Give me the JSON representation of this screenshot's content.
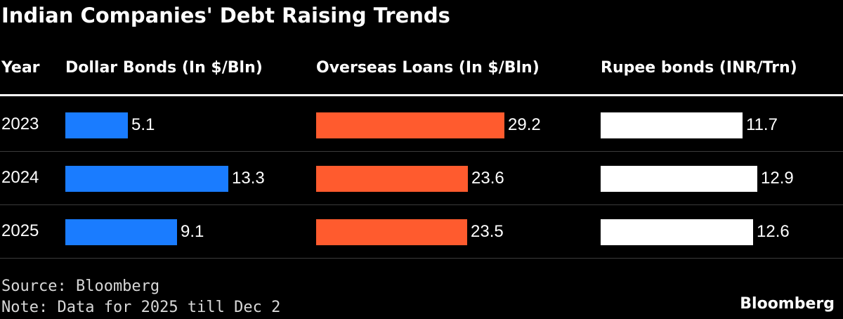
{
  "chart_data": {
    "type": "table",
    "title": "Indian Companies' Debt Raising Trends",
    "row_header": "Year",
    "categories": [
      "2023",
      "2024",
      "2025"
    ],
    "series": [
      {
        "name": "Dollar Bonds (In $/Bln)",
        "values": [
          5.1,
          13.3,
          9.1
        ],
        "labels": [
          "5.1",
          "13.3",
          "9.1"
        ],
        "color": "#1a7cff"
      },
      {
        "name": "Overseas Loans (In $/Bln)",
        "values": [
          29.2,
          23.6,
          23.5
        ],
        "labels": [
          "29.2",
          "23.6",
          "23.5"
        ],
        "color": "#ff5b2e"
      },
      {
        "name": "Rupee bonds (INR/Trn)",
        "values": [
          11.7,
          12.9,
          12.6
        ],
        "labels": [
          "11.7",
          "12.9",
          "12.6"
        ],
        "color": "#ffffff"
      }
    ]
  },
  "footer": {
    "source": "Source: Bloomberg",
    "note": "Note: Data for 2025 till Dec 2",
    "logo": "Bloomberg"
  }
}
